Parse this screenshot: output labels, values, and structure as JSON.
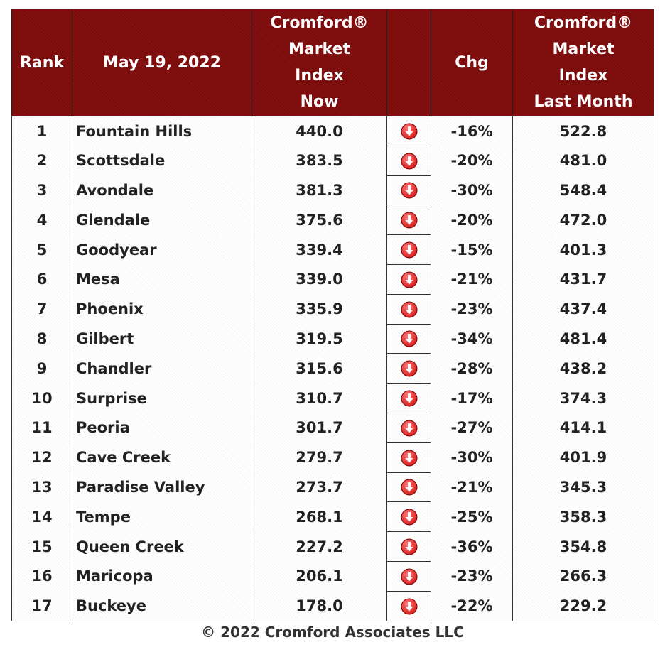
{
  "header": {
    "rank": "Rank",
    "date": "May 19, 2022",
    "now_lines": [
      "Cromford®",
      "Market",
      "Index",
      "Now"
    ],
    "chg": "Chg",
    "last_lines": [
      "Cromford®",
      "Market",
      "Index",
      "Last Month"
    ]
  },
  "colors": {
    "header_bg": "#7d0b0b",
    "header_text": "#ffffff",
    "arrow_red": "#d81f1f"
  },
  "icons": {
    "trend": "down-arrow-icon"
  },
  "chart_data": {
    "type": "table",
    "columns": [
      "Rank",
      "May 19, 2022",
      "Cromford® Market Index Now",
      "",
      "Chg",
      "Cromford® Market Index Last Month"
    ],
    "rows": [
      {
        "rank": "1",
        "city": "Fountain Hills",
        "now": "440.0",
        "chg": "-16%",
        "last": "522.8"
      },
      {
        "rank": "2",
        "city": "Scottsdale",
        "now": "383.5",
        "chg": "-20%",
        "last": "481.0"
      },
      {
        "rank": "3",
        "city": "Avondale",
        "now": "381.3",
        "chg": "-30%",
        "last": "548.4"
      },
      {
        "rank": "4",
        "city": "Glendale",
        "now": "375.6",
        "chg": "-20%",
        "last": "472.0"
      },
      {
        "rank": "5",
        "city": "Goodyear",
        "now": "339.4",
        "chg": "-15%",
        "last": "401.3"
      },
      {
        "rank": "6",
        "city": "Mesa",
        "now": "339.0",
        "chg": "-21%",
        "last": "431.7"
      },
      {
        "rank": "7",
        "city": "Phoenix",
        "now": "335.9",
        "chg": "-23%",
        "last": "437.4"
      },
      {
        "rank": "8",
        "city": "Gilbert",
        "now": "319.5",
        "chg": "-34%",
        "last": "481.4"
      },
      {
        "rank": "9",
        "city": "Chandler",
        "now": "315.6",
        "chg": "-28%",
        "last": "438.2"
      },
      {
        "rank": "10",
        "city": "Surprise",
        "now": "310.7",
        "chg": "-17%",
        "last": "374.3"
      },
      {
        "rank": "11",
        "city": "Peoria",
        "now": "301.7",
        "chg": "-27%",
        "last": "414.1"
      },
      {
        "rank": "12",
        "city": "Cave Creek",
        "now": "279.7",
        "chg": "-30%",
        "last": "401.9"
      },
      {
        "rank": "13",
        "city": "Paradise Valley",
        "now": "273.7",
        "chg": "-21%",
        "last": "345.3"
      },
      {
        "rank": "14",
        "city": "Tempe",
        "now": "268.1",
        "chg": "-25%",
        "last": "358.3"
      },
      {
        "rank": "15",
        "city": "Queen Creek",
        "now": "227.2",
        "chg": "-36%",
        "last": "354.8"
      },
      {
        "rank": "16",
        "city": "Maricopa",
        "now": "206.1",
        "chg": "-23%",
        "last": "266.3"
      },
      {
        "rank": "17",
        "city": "Buckeye",
        "now": "178.0",
        "chg": "-22%",
        "last": "229.2"
      }
    ]
  },
  "footer": {
    "copyright": "© 2022 Cromford Associates LLC"
  }
}
